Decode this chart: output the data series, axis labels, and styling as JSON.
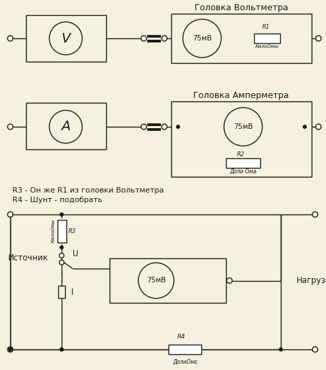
{
  "bg_color": "#f5f0df",
  "line_color": "#1a1a1a",
  "title_voltmeter": "Головка Вольтметра",
  "title_ammeter": "Головка Амперметра",
  "label_75mV": "75мВ",
  "label_V": "V",
  "label_A": "A",
  "label_R1": "R1",
  "label_R1_sub": "КилоОмы",
  "label_R2": "R2",
  "label_R2_sub": "Доли Ома",
  "label_R3": "R3",
  "label_R3_sub": "КилоОмы",
  "label_R4": "R4",
  "label_R4_sub": "ДолиОмε",
  "label_U": "U",
  "label_I": "I",
  "label_source": "Источник",
  "label_load": "Нагрузка",
  "text_note1": "R3 - Он же R1 из головки Вольтметра",
  "text_note2": "R4 - Шунт - подобрать",
  "fig_width": 4.76,
  "fig_height": 5.4,
  "dpi": 100
}
